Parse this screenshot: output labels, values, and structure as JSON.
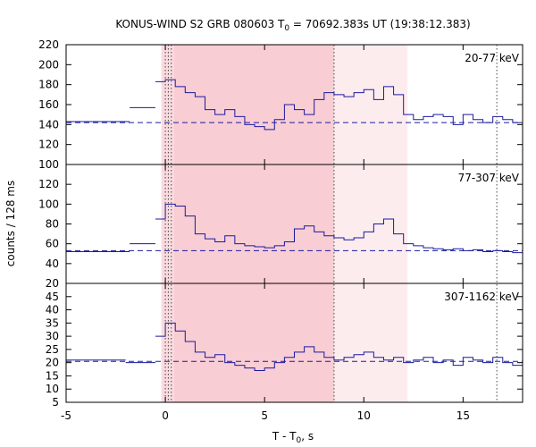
{
  "chart_data": {
    "type": "line",
    "title": "KONUS-WIND S2 GRB 080603 T",
    "title_sub": "0",
    "title_rest": " = 70692.383s UT (19:38:12.383)",
    "xlabel": "T - T",
    "xlabel_sub": "0",
    "xlabel_rest": ", s",
    "ylabel": "counts / 128 ms",
    "xlim": [
      -5,
      18
    ],
    "xticks": [
      -5,
      0,
      5,
      10,
      15
    ],
    "xtick_labels": [
      "-5",
      "0",
      "5",
      "10",
      "15"
    ],
    "shaded_intervals": [
      {
        "from": -0.2,
        "to": 8.5,
        "color": "#fadadf"
      },
      {
        "from": 0.45,
        "to": 8.5,
        "color": "#f9cdd4"
      },
      {
        "from": 8.5,
        "to": 12.2,
        "color": "#fdecee"
      }
    ],
    "vertical_markers": [
      0.0,
      0.15,
      0.3,
      8.5,
      16.7
    ],
    "panels": [
      {
        "band": "20-77 keV",
        "ylim": [
          100,
          220
        ],
        "yticks": [
          100,
          120,
          140,
          160,
          180,
          200,
          220
        ],
        "ytick_labels": [
          "100",
          "120",
          "140",
          "160",
          "180",
          "200",
          "220"
        ],
        "background": 142,
        "series": [
          {
            "x": [
              -5,
              -1.8
            ],
            "y": [
              143,
              143
            ]
          },
          {
            "x": [
              -1.8,
              -0.5
            ],
            "y": [
              157,
              157
            ]
          },
          {
            "x": [
              -0.5,
              0,
              0.5,
              1,
              1.5,
              2,
              2.5,
              3,
              3.5,
              4,
              4.5,
              5,
              5.5,
              6,
              6.5,
              7,
              7.5,
              8,
              8.5,
              9,
              9.5,
              10,
              10.5,
              11,
              11.5,
              12,
              12.5,
              13,
              13.5,
              14,
              14.5,
              15,
              15.5,
              16,
              16.5,
              17,
              17.5,
              18
            ],
            "y": [
              183,
              185,
              178,
              172,
              168,
              155,
              150,
              155,
              148,
              140,
              138,
              135,
              145,
              160,
              155,
              150,
              165,
              172,
              170,
              168,
              172,
              175,
              165,
              178,
              170,
              150,
              145,
              148,
              150,
              148,
              140,
              150,
              145,
              142,
              148,
              145,
              142,
              148
            ]
          }
        ]
      },
      {
        "band": "77-307 keV",
        "ylim": [
          20,
          140
        ],
        "yticks": [
          20,
          40,
          60,
          80,
          100,
          120
        ],
        "ytick_labels": [
          "20",
          "40",
          "60",
          "80",
          "100",
          "120"
        ],
        "background": 53,
        "series": [
          {
            "x": [
              -5,
              -1.8
            ],
            "y": [
              52,
              52
            ]
          },
          {
            "x": [
              -1.8,
              -0.5
            ],
            "y": [
              60,
              60
            ]
          },
          {
            "x": [
              -0.5,
              0,
              0.5,
              1,
              1.5,
              2,
              2.5,
              3,
              3.5,
              4,
              4.5,
              5,
              5.5,
              6,
              6.5,
              7,
              7.5,
              8,
              8.5,
              9,
              9.5,
              10,
              10.5,
              11,
              11.5,
              12,
              12.5,
              13,
              13.5,
              14,
              14.5,
              15,
              15.5,
              16,
              16.5,
              17,
              17.5,
              18
            ],
            "y": [
              85,
              100,
              98,
              88,
              70,
              65,
              62,
              68,
              60,
              58,
              57,
              56,
              58,
              62,
              75,
              78,
              72,
              68,
              66,
              64,
              66,
              72,
              80,
              85,
              70,
              60,
              58,
              56,
              55,
              54,
              55,
              53,
              54,
              52,
              53,
              52,
              51,
              50
            ]
          }
        ]
      },
      {
        "band": "307-1162 keV",
        "ylim": [
          5,
          50
        ],
        "yticks": [
          5,
          10,
          15,
          20,
          25,
          30,
          35,
          40,
          45
        ],
        "ytick_labels": [
          "5",
          "10",
          "15",
          "20",
          "25",
          "30",
          "35",
          "40",
          "45"
        ],
        "background": 20.5,
        "series": [
          {
            "x": [
              -5,
              -2
            ],
            "y": [
              21,
              21
            ]
          },
          {
            "x": [
              -2,
              -0.5
            ],
            "y": [
              20,
              20
            ]
          },
          {
            "x": [
              -0.5,
              0,
              0.5,
              1,
              1.5,
              2,
              2.5,
              3,
              3.5,
              4,
              4.5,
              5,
              5.5,
              6,
              6.5,
              7,
              7.5,
              8,
              8.5,
              9,
              9.5,
              10,
              10.5,
              11,
              11.5,
              12,
              12.5,
              13,
              13.5,
              14,
              14.5,
              15,
              15.5,
              16,
              16.5,
              17,
              17.5,
              18
            ],
            "y": [
              30,
              35,
              32,
              28,
              24,
              22,
              23,
              20,
              19,
              18,
              17,
              18,
              20,
              22,
              24,
              26,
              24,
              22,
              21,
              22,
              23,
              24,
              22,
              21,
              22,
              20,
              21,
              22,
              20,
              21,
              19,
              22,
              21,
              20,
              22,
              20,
              19,
              20
            ]
          }
        ]
      }
    ]
  }
}
